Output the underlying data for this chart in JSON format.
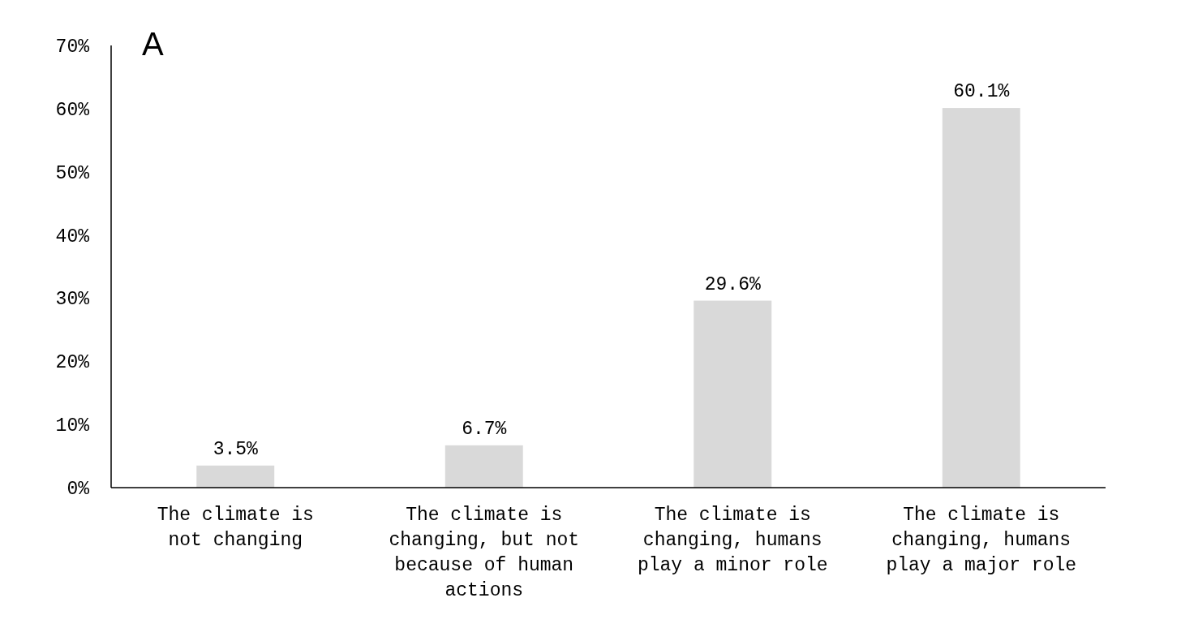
{
  "chart_data": {
    "type": "bar",
    "title": "A",
    "categories": [
      "The climate is not changing",
      "The climate is changing, but not because of human actions",
      "The climate is changing, humans play a minor role",
      "The climate is changing, humans play a major role"
    ],
    "values": [
      3.5,
      6.7,
      29.6,
      60.1
    ],
    "value_labels": [
      "3.5%",
      "6.7%",
      "29.6%",
      "60.1%"
    ],
    "color": "#d9d9d9",
    "ylim": [
      0,
      70
    ],
    "yticks": [
      {
        "value": 0,
        "label": "0%"
      },
      {
        "value": 10,
        "label": "10%"
      },
      {
        "value": 20,
        "label": "20%"
      },
      {
        "value": 30,
        "label": "30%"
      },
      {
        "value": 40,
        "label": "40%"
      },
      {
        "value": 50,
        "label": "50%"
      },
      {
        "value": 60,
        "label": "60%"
      },
      {
        "value": 70,
        "label": "70%"
      }
    ],
    "grid": false
  }
}
